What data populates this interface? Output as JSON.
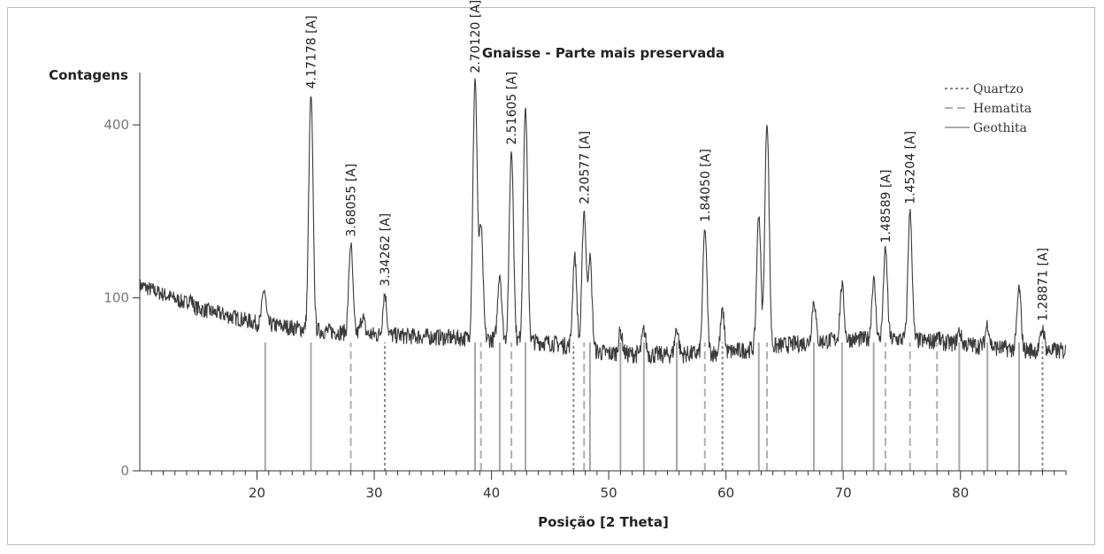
{
  "chart_data": {
    "type": "line",
    "title": "Gnaisse - Parte mais preservada",
    "xlabel": "Posição [2 Theta]",
    "ylabel": "Contagens",
    "xlim": [
      10,
      89
    ],
    "ylim": [
      0,
      530
    ],
    "x_ticks": [
      "20",
      "30",
      "40",
      "50",
      "60",
      "70",
      "80"
    ],
    "x_tick_values": [
      20,
      30,
      40,
      50,
      60,
      70,
      80
    ],
    "y_ticks": [
      "0",
      "100",
      "400"
    ],
    "y_tick_values": [
      0,
      100,
      400
    ],
    "y_scale": "sqrt",
    "grid": false,
    "legend_position": "top-right",
    "legend": [
      {
        "name": "Quartzo",
        "style": "dotted",
        "color": "#8a8a8a"
      },
      {
        "name": "Hematita",
        "style": "dashed",
        "color": "#b0b0b0"
      },
      {
        "name": "Geothita",
        "style": "solid",
        "color": "#a8a8a8"
      }
    ],
    "series_color": "#3a3a3a",
    "background": {
      "x": [
        10,
        15,
        20,
        25,
        30,
        35,
        40,
        45,
        50,
        55,
        60,
        65,
        70,
        75,
        80,
        85,
        89
      ],
      "y": [
        115,
        88,
        73,
        66,
        62,
        60,
        58,
        55,
        46,
        45,
        47,
        53,
        58,
        58,
        54,
        49,
        48
      ]
    },
    "peaks": [
      {
        "x": 14.3,
        "y": 100
      },
      {
        "x": 16.5,
        "y": 82
      },
      {
        "x": 20.6,
        "y": 110
      },
      {
        "x": 24.6,
        "y": 470
      },
      {
        "x": 28.0,
        "y": 172
      },
      {
        "x": 29.0,
        "y": 80
      },
      {
        "x": 30.9,
        "y": 105
      },
      {
        "x": 38.6,
        "y": 510
      },
      {
        "x": 39.1,
        "y": 200
      },
      {
        "x": 40.7,
        "y": 130
      },
      {
        "x": 41.7,
        "y": 340
      },
      {
        "x": 42.9,
        "y": 440
      },
      {
        "x": 47.1,
        "y": 155
      },
      {
        "x": 47.9,
        "y": 225
      },
      {
        "x": 48.4,
        "y": 152
      },
      {
        "x": 51.0,
        "y": 65
      },
      {
        "x": 53.0,
        "y": 66
      },
      {
        "x": 55.8,
        "y": 68
      },
      {
        "x": 58.2,
        "y": 195
      },
      {
        "x": 59.7,
        "y": 85
      },
      {
        "x": 62.8,
        "y": 220
      },
      {
        "x": 63.5,
        "y": 405
      },
      {
        "x": 67.5,
        "y": 97
      },
      {
        "x": 69.9,
        "y": 115
      },
      {
        "x": 72.6,
        "y": 122
      },
      {
        "x": 73.6,
        "y": 163
      },
      {
        "x": 75.7,
        "y": 225
      },
      {
        "x": 78.0,
        "y": 62
      },
      {
        "x": 79.9,
        "y": 65
      },
      {
        "x": 82.3,
        "y": 72
      },
      {
        "x": 85.0,
        "y": 112
      },
      {
        "x": 87.0,
        "y": 68
      }
    ],
    "peak_labels": [
      {
        "text": "4.17178 [A]",
        "x": 24.6
      },
      {
        "text": "3.68055 [A]",
        "x": 28.0
      },
      {
        "text": "3.34262 [A]",
        "x": 30.9
      },
      {
        "text": "2.70120 [A]",
        "x": 38.6
      },
      {
        "text": "2.51605 [A]",
        "x": 41.7
      },
      {
        "text": "2.20577 [A]",
        "x": 47.9
      },
      {
        "text": "1.84050 [A]",
        "x": 58.2
      },
      {
        "text": "1.48589 [A]",
        "x": 73.6
      },
      {
        "text": "1.45204 [A]",
        "x": 75.7
      },
      {
        "text": "1.28871 [A]",
        "x": 87.0
      }
    ],
    "reference_lines": [
      {
        "x": 20.7,
        "phase": "Geothita"
      },
      {
        "x": 24.6,
        "phase": "Geothita"
      },
      {
        "x": 28.0,
        "phase": "Hematita"
      },
      {
        "x": 30.9,
        "phase": "Quartzo"
      },
      {
        "x": 38.6,
        "phase": "Geothita"
      },
      {
        "x": 39.1,
        "phase": "Hematita"
      },
      {
        "x": 40.7,
        "phase": "Geothita"
      },
      {
        "x": 41.7,
        "phase": "Hematita"
      },
      {
        "x": 42.9,
        "phase": "Geothita"
      },
      {
        "x": 47.0,
        "phase": "Quartzo"
      },
      {
        "x": 47.9,
        "phase": "Hematita"
      },
      {
        "x": 48.4,
        "phase": "Geothita"
      },
      {
        "x": 51.0,
        "phase": "Geothita"
      },
      {
        "x": 53.0,
        "phase": "Geothita"
      },
      {
        "x": 55.8,
        "phase": "Geothita"
      },
      {
        "x": 58.2,
        "phase": "Hematita"
      },
      {
        "x": 59.7,
        "phase": "Quartzo"
      },
      {
        "x": 62.8,
        "phase": "Geothita"
      },
      {
        "x": 63.5,
        "phase": "Hematita"
      },
      {
        "x": 67.5,
        "phase": "Geothita"
      },
      {
        "x": 69.9,
        "phase": "Geothita"
      },
      {
        "x": 72.6,
        "phase": "Geothita"
      },
      {
        "x": 73.6,
        "phase": "Hematita"
      },
      {
        "x": 75.7,
        "phase": "Hematita"
      },
      {
        "x": 78.0,
        "phase": "Hematita"
      },
      {
        "x": 79.9,
        "phase": "Geothita"
      },
      {
        "x": 82.3,
        "phase": "Geothita"
      },
      {
        "x": 85.0,
        "phase": "Geothita"
      },
      {
        "x": 87.0,
        "phase": "Quartzo"
      }
    ]
  }
}
